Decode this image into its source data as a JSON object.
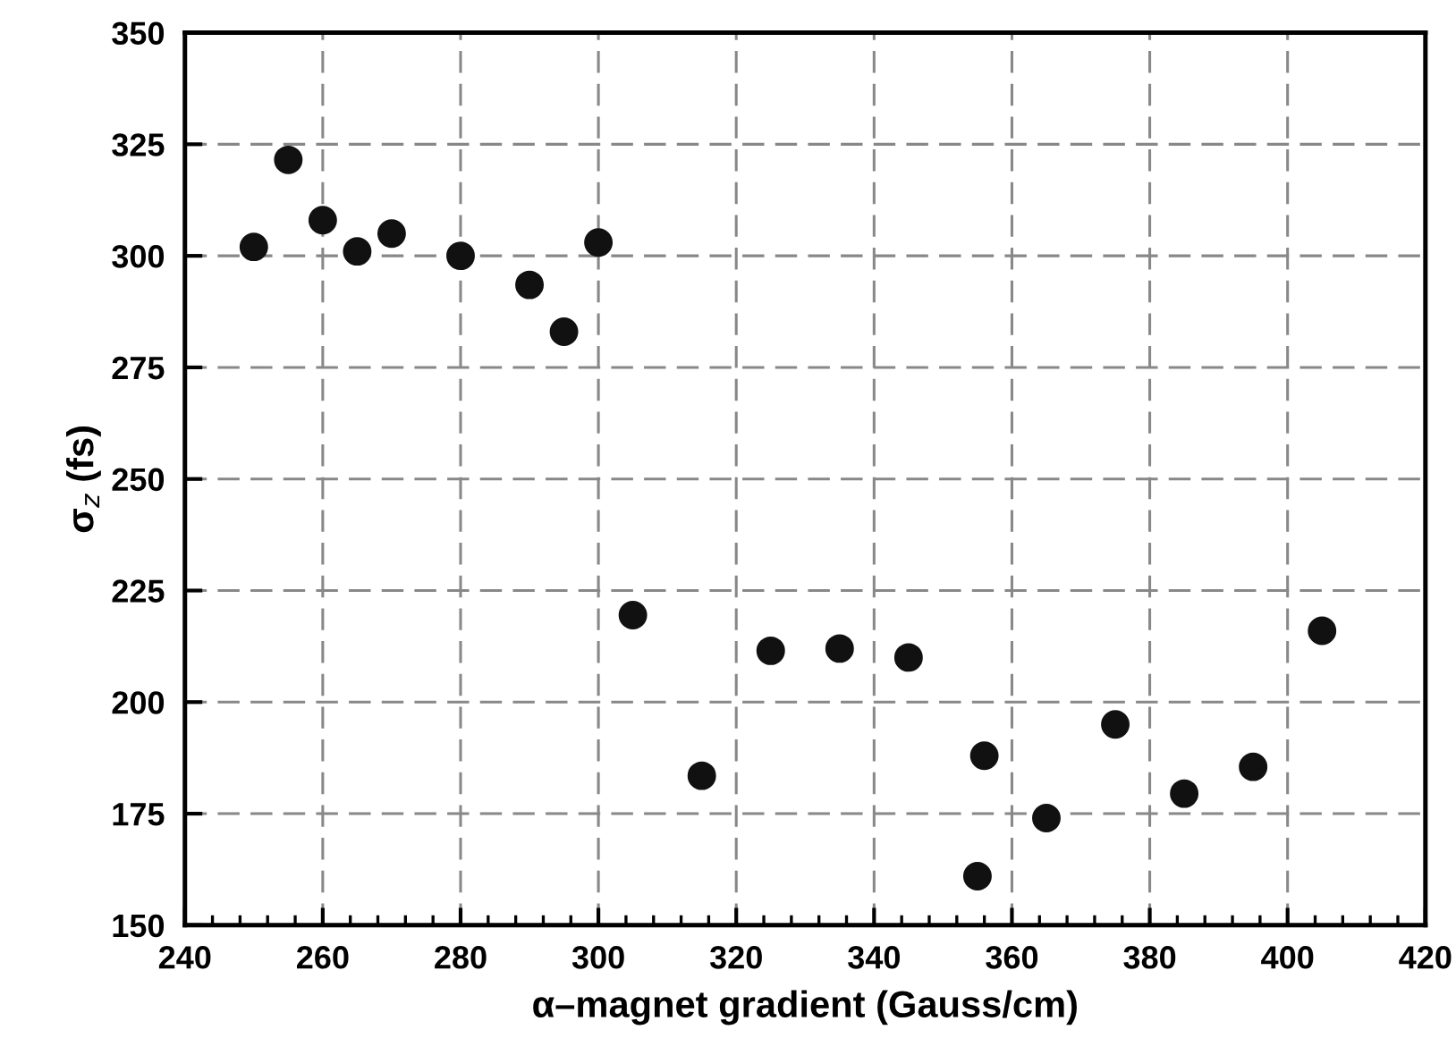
{
  "chart_data": {
    "type": "scatter",
    "xlabel": "α–magnet gradient (Gauss/cm)",
    "ylabel": "σ$_{z}$ (fs)",
    "x": [
      250,
      255,
      260,
      265,
      270,
      280,
      290,
      295,
      300,
      305,
      315,
      325,
      335,
      345,
      356,
      355,
      365,
      375,
      385,
      395,
      405
    ],
    "series": [
      {
        "color": "#111111",
        "values": [
          302,
          321.5,
          308,
          301,
          305,
          300,
          293.5,
          283,
          303,
          219.5,
          183.5,
          211.5,
          212,
          210,
          188,
          161,
          174,
          195,
          179.5,
          185.5,
          216
        ]
      }
    ],
    "marker": "circle",
    "grid": true,
    "xlim": [
      240,
      420
    ],
    "xticks": [
      240,
      260,
      280,
      300,
      320,
      340,
      360,
      380,
      400,
      420
    ],
    "ylim": [
      150,
      350
    ],
    "yticks": [
      150,
      175,
      200,
      225,
      250,
      275,
      300,
      325,
      350
    ]
  }
}
